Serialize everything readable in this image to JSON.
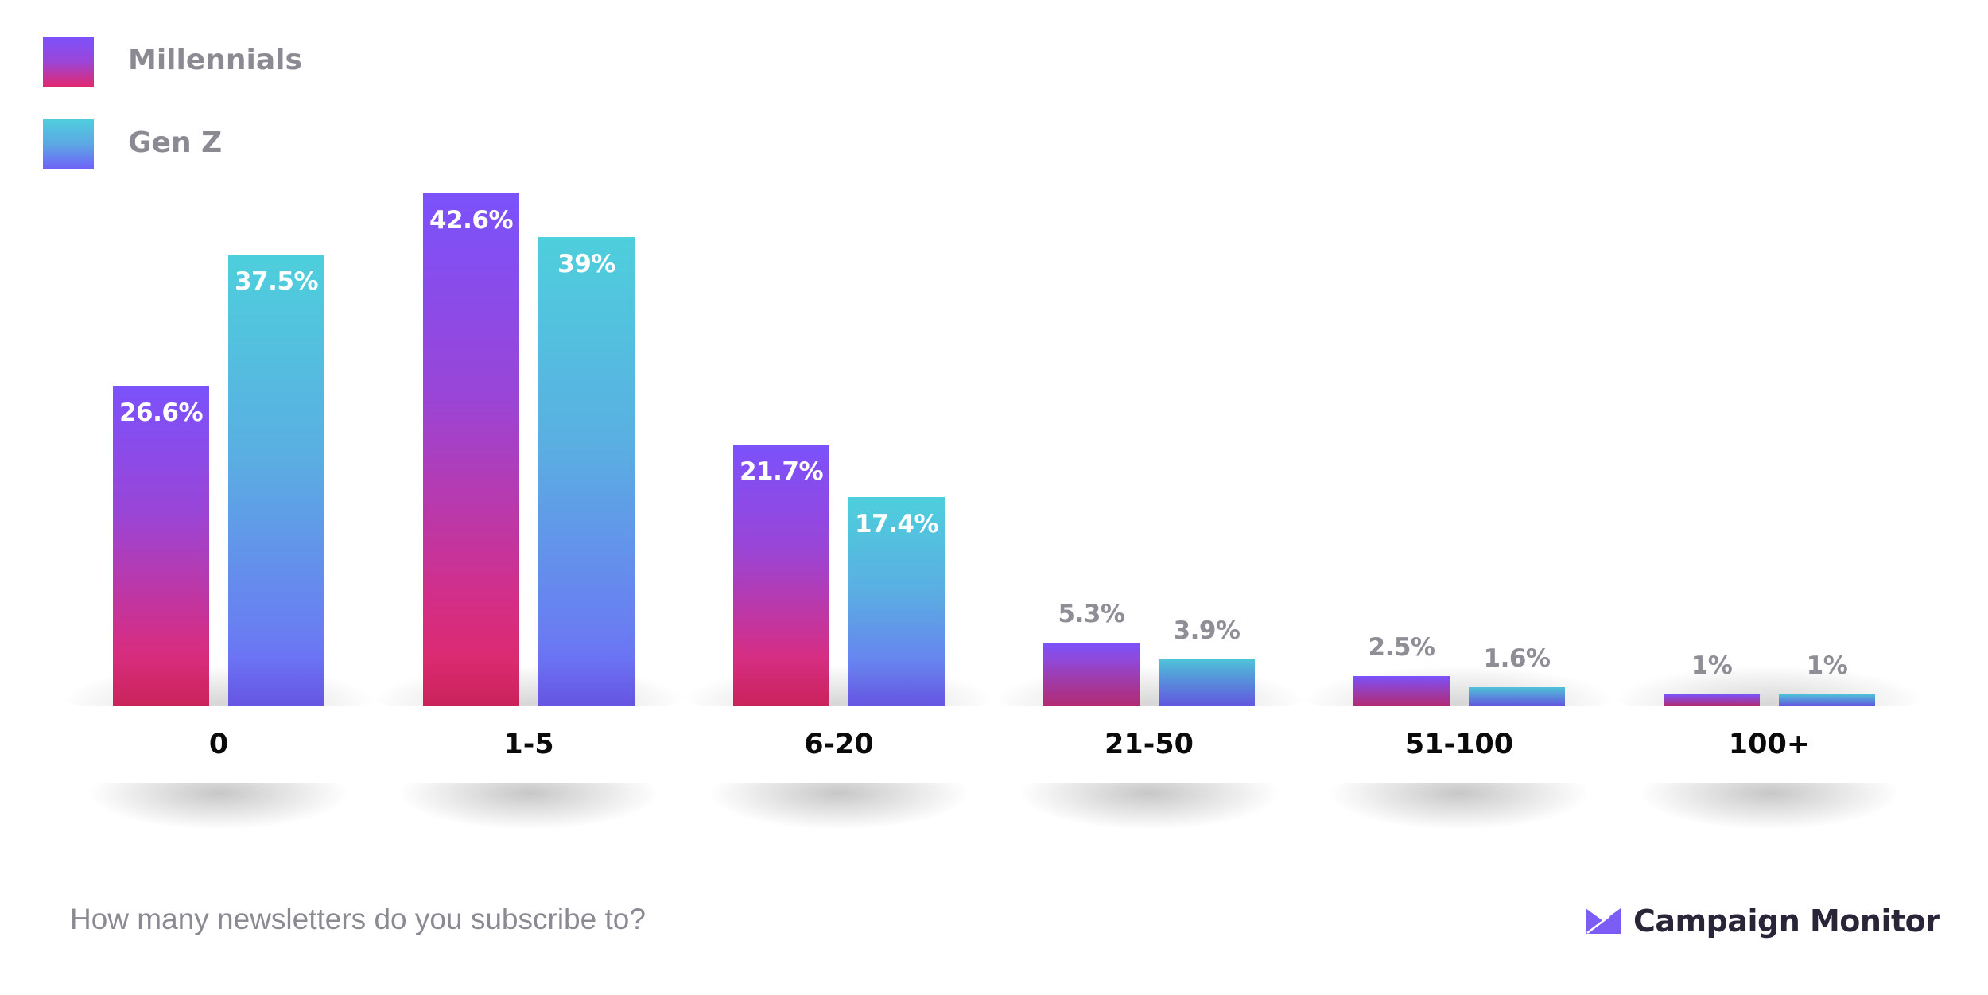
{
  "legend": [
    {
      "label": "Millennials",
      "gradient_top": "#7b52fc",
      "gradient_bottom": "#e4276a"
    },
    {
      "label": "Gen Z",
      "gradient_top": "#4ecfdc",
      "gradient_bottom": "#6e60f8"
    }
  ],
  "caption": "How many newsletters do you subscribe to?",
  "brand": {
    "name": "Campaign Monitor",
    "icon": "envelope-logo-icon",
    "color": "#7b5cf5"
  },
  "chart_data": {
    "type": "bar",
    "title": "How many newsletters do you subscribe to?",
    "xlabel": "",
    "ylabel": "",
    "categories": [
      "0",
      "1-5",
      "6-20",
      "21-50",
      "51-100",
      "100+"
    ],
    "series": [
      {
        "name": "Millennials",
        "values": [
          26.6,
          42.6,
          21.7,
          5.3,
          2.5,
          1
        ],
        "labels": [
          "26.6%",
          "42.6%",
          "21.7%",
          "5.3%",
          "2.5%",
          "1%"
        ]
      },
      {
        "name": "Gen Z",
        "values": [
          37.5,
          39,
          17.4,
          3.9,
          1.6,
          1
        ],
        "labels": [
          "37.5%",
          "39%",
          "17.4%",
          "3.9%",
          "1.6%",
          "1%"
        ]
      }
    ],
    "ylim": [
      0,
      45
    ],
    "grid": false,
    "legend_position": "top-left"
  }
}
